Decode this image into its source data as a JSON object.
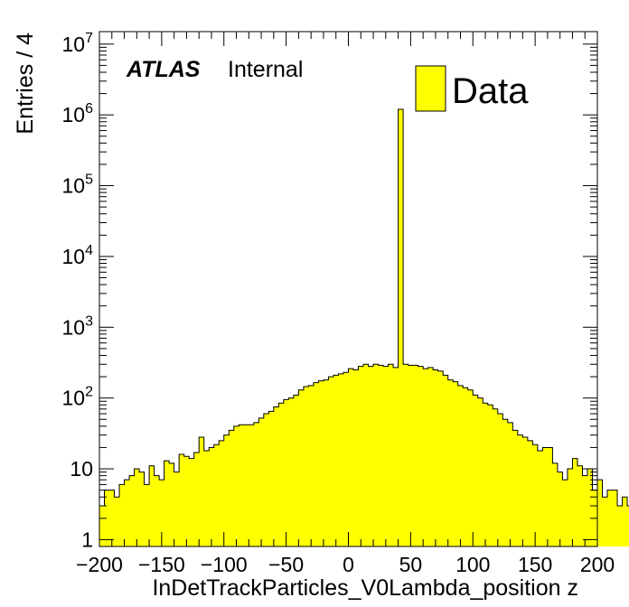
{
  "chart_data": {
    "type": "bar",
    "xlabel": "InDetTrackParticles_V0Lambda_position z",
    "ylabel": "Entries / 4",
    "xlim": [
      -200,
      200
    ],
    "ylim": [
      0.8,
      15000000
    ],
    "y_scale": "log",
    "bin_width": 4,
    "x_ticks": [
      -200,
      -150,
      -100,
      -50,
      0,
      50,
      100,
      150,
      200
    ],
    "x_tick_labels": [
      "−200",
      "−150",
      "−100",
      "−50",
      "0",
      "50",
      "100",
      "150",
      "200"
    ],
    "y_ticks": [
      {
        "value": 1,
        "base": "1",
        "exp": ""
      },
      {
        "value": 10,
        "base": "10",
        "exp": ""
      },
      {
        "value": 100,
        "base": "10",
        "exp": "2"
      },
      {
        "value": 1000,
        "base": "10",
        "exp": "3"
      },
      {
        "value": 10000,
        "base": "10",
        "exp": "4"
      },
      {
        "value": 100000,
        "base": "10",
        "exp": "5"
      },
      {
        "value": 1000000,
        "base": "10",
        "exp": "6"
      },
      {
        "value": 10000000,
        "base": "10",
        "exp": "7"
      }
    ],
    "fill_color": "#ffff00",
    "edge_color": "#000000",
    "legend_position": "top-right",
    "series": [
      {
        "name": "Data",
        "values": [
          3,
          5,
          5,
          4,
          6,
          7,
          8,
          10,
          9,
          6,
          11,
          8,
          7,
          13,
          12,
          9,
          16,
          15,
          14,
          17,
          28,
          18,
          20,
          22,
          25,
          30,
          35,
          40,
          42,
          42,
          42,
          45,
          52,
          60,
          65,
          75,
          85,
          95,
          100,
          110,
          130,
          145,
          150,
          165,
          175,
          180,
          200,
          210,
          220,
          230,
          260,
          250,
          280,
          300,
          280,
          300,
          290,
          280,
          300,
          270,
          1200000,
          300,
          290,
          290,
          280,
          260,
          270,
          250,
          240,
          210,
          180,
          170,
          150,
          140,
          130,
          110,
          100,
          85,
          80,
          70,
          60,
          50,
          45,
          35,
          30,
          28,
          25,
          22,
          18,
          20,
          20,
          12,
          9,
          7,
          10,
          14,
          11,
          8,
          10,
          5,
          7,
          4,
          5,
          5,
          3,
          4,
          3,
          4,
          4,
          3
        ]
      }
    ]
  },
  "labels": {
    "atlas": "ATLAS",
    "internal": "Internal",
    "legend_entry": "Data"
  }
}
